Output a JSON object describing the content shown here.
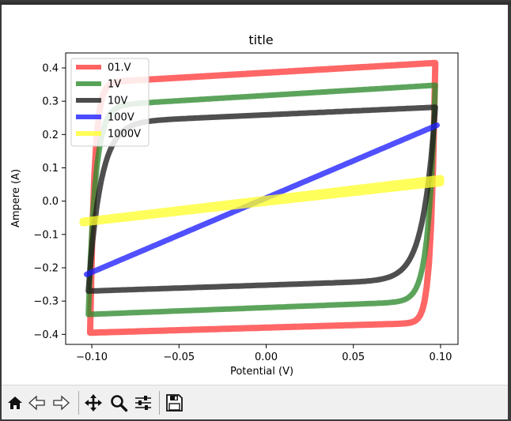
{
  "window": {
    "title": ""
  },
  "chart_data": {
    "type": "line",
    "title": "title",
    "xlabel": "Potential (V)",
    "ylabel": "Ampere (A)",
    "xlim": [
      -0.115,
      0.11
    ],
    "ylim": [
      -0.43,
      0.445
    ],
    "xticks": [
      -0.1,
      -0.05,
      0.0,
      0.05,
      0.1
    ],
    "xtick_labels": [
      "−0.10",
      "−0.05",
      "0.00",
      "0.05",
      "0.10"
    ],
    "yticks": [
      -0.4,
      -0.3,
      -0.2,
      -0.1,
      0.0,
      0.1,
      0.2,
      0.3,
      0.4
    ],
    "ytick_labels": [
      "−0.4",
      "−0.3",
      "−0.2",
      "−0.1",
      "0.0",
      "0.1",
      "0.2",
      "0.3",
      "0.4"
    ],
    "grid": false,
    "legend_position": "top-left",
    "series": [
      {
        "name": "01.V",
        "color": "#ff3b3b",
        "x_range": [
          -0.101,
          0.097
        ],
        "upper": [
          0.355,
          0.415
        ],
        "lower": [
          -0.395,
          -0.365
        ],
        "tau": 0.0025,
        "width": 8
      },
      {
        "name": "1V",
        "color": "#2e8b2e",
        "x_range": [
          -0.102,
          0.097
        ],
        "upper": [
          0.285,
          0.348
        ],
        "lower": [
          -0.34,
          -0.3
        ],
        "tau": 0.004,
        "width": 7
      },
      {
        "name": "10V",
        "color": "#1e1e1e",
        "x_range": [
          -0.102,
          0.097
        ],
        "upper": [
          0.235,
          0.282
        ],
        "lower": [
          -0.27,
          -0.235
        ],
        "tau": 0.007,
        "width": 7
      },
      {
        "name": "100V",
        "color": "#1f1fff",
        "x_range": [
          -0.103,
          0.098
        ],
        "upper": [
          -0.22,
          0.228
        ],
        "lower": [
          -0.22,
          0.228
        ],
        "tau": 0.045,
        "width": 7
      },
      {
        "name": "1000V",
        "color": "#ffff2e",
        "x_range": [
          -0.105,
          0.1
        ],
        "upper": [
          -0.06,
          0.068
        ],
        "lower": [
          -0.065,
          0.055
        ],
        "tau": 0,
        "width": 9
      }
    ]
  },
  "toolbar": {
    "buttons": [
      {
        "name": "home-button",
        "icon": "home-icon"
      },
      {
        "name": "back-button",
        "icon": "arrow-left-icon"
      },
      {
        "name": "forward-button",
        "icon": "arrow-right-icon"
      },
      {
        "name": "pan-button",
        "icon": "move-icon"
      },
      {
        "name": "zoom-button",
        "icon": "magnifier-icon"
      },
      {
        "name": "configure-button",
        "icon": "sliders-icon"
      },
      {
        "name": "save-button",
        "icon": "floppy-icon"
      }
    ]
  }
}
